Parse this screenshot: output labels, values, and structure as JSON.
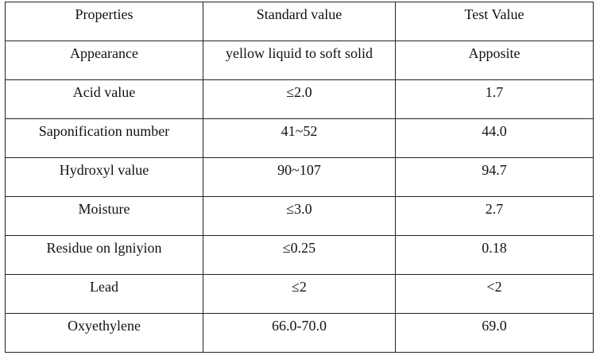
{
  "table": {
    "header": [
      "Properties",
      "Standard value",
      "Test Value"
    ],
    "rows": [
      [
        "Appearance",
        "yellow liquid to soft solid",
        "Apposite"
      ],
      [
        "Acid value",
        "≤2.0",
        "1.7"
      ],
      [
        "Saponification number",
        "41~52",
        "44.0"
      ],
      [
        "Hydroxyl value",
        "90~107",
        "94.7"
      ],
      [
        "Moisture",
        "≤3.0",
        "2.7"
      ],
      [
        "Residue on lgniyion",
        "≤0.25",
        "0.18"
      ],
      [
        "Lead",
        "≤2",
        "<2"
      ],
      [
        "Oxyethylene",
        "66.0-70.0",
        "69.0"
      ]
    ]
  }
}
